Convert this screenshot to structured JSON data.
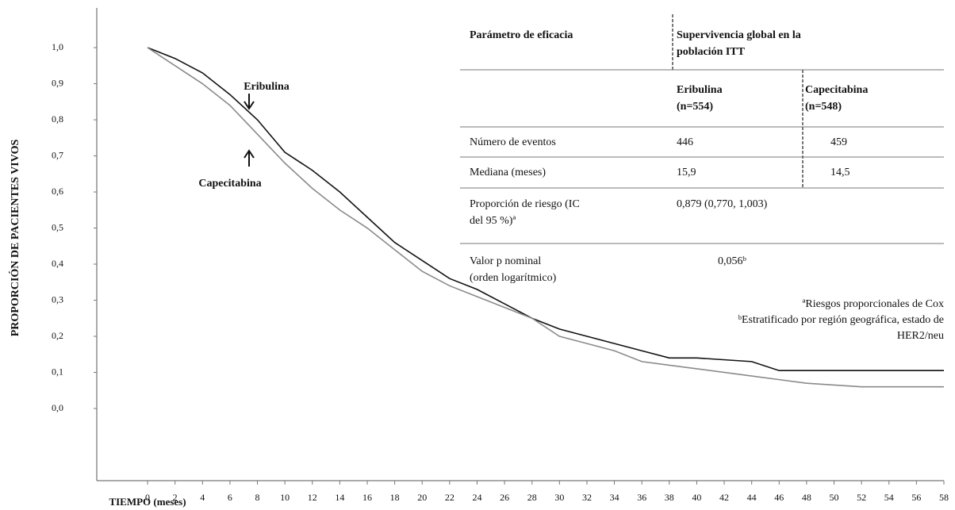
{
  "chart_data": {
    "type": "line",
    "y_label": "PROPORCIÓN DE PACIENTES VIVOS",
    "x_label": "TIEMPO (meses)",
    "xlim": [
      -3.7,
      58
    ],
    "xticks": [
      0,
      2,
      4,
      6,
      8,
      10,
      12,
      14,
      16,
      18,
      20,
      22,
      24,
      26,
      28,
      30,
      32,
      34,
      36,
      38,
      40,
      42,
      44,
      46,
      48,
      50,
      52,
      54,
      56,
      58
    ],
    "ylim": [
      -0.2,
      1.11
    ],
    "yticks": [
      {
        "value": 0,
        "label": "0,0"
      },
      {
        "value": 0.1,
        "label": "0,1"
      },
      {
        "value": 0.2,
        "label": "0,2"
      },
      {
        "value": 0.3,
        "label": "0,3"
      },
      {
        "value": 0.4,
        "label": "0,4"
      },
      {
        "value": 0.5,
        "label": "0,5"
      },
      {
        "value": 0.6,
        "label": "0,6"
      },
      {
        "value": 0.7,
        "label": "0,7"
      },
      {
        "value": 0.8,
        "label": "0,8"
      },
      {
        "value": 0.9,
        "label": "0,9"
      },
      {
        "value": 1,
        "label": "1,0"
      }
    ],
    "x": [
      0,
      2,
      4,
      6,
      8,
      10,
      12,
      14,
      16,
      18,
      20,
      22,
      24,
      26,
      28,
      30,
      32,
      34,
      36,
      38,
      40,
      44,
      46,
      48,
      52,
      58
    ],
    "series": [
      {
        "name": "Eribulina",
        "color": "#111111",
        "values": [
          1.0,
          0.97,
          0.93,
          0.87,
          0.8,
          0.71,
          0.66,
          0.6,
          0.53,
          0.46,
          0.41,
          0.36,
          0.33,
          0.29,
          0.25,
          0.22,
          0.2,
          0.18,
          0.16,
          0.14,
          0.14,
          0.13,
          0.105,
          0.105,
          0.105,
          0.105
        ]
      },
      {
        "name": "Capecitabina",
        "color": "#8a8a8a",
        "values": [
          1.0,
          0.95,
          0.9,
          0.84,
          0.76,
          0.68,
          0.61,
          0.55,
          0.5,
          0.44,
          0.38,
          0.34,
          0.31,
          0.28,
          0.25,
          0.2,
          0.18,
          0.16,
          0.13,
          0.12,
          0.11,
          0.09,
          0.08,
          0.07,
          0.06,
          0.06
        ]
      }
    ]
  },
  "table": {
    "header": [
      [
        "Parámetro de eficacia"
      ],
      [
        "Supervivencia global en la",
        "población ITT"
      ]
    ],
    "subheader": [
      [
        "Eribulina",
        "(n=554)"
      ],
      [
        "Capecitabina",
        "(n=548)"
      ]
    ],
    "rows": [
      [
        [
          "Número de eventos"
        ],
        [
          "446"
        ],
        [
          "459"
        ]
      ],
      [
        [
          "Mediana (meses)"
        ],
        [
          "15,9"
        ],
        [
          "14,5"
        ]
      ],
      [
        [
          "Proporción de riesgo (IC",
          "del 95 %)ª"
        ],
        [
          "0,879 (0,770, 1,003)"
        ]
      ],
      [
        [
          "Valor p nominal",
          "(orden logarítmico)"
        ],
        [
          "0,056ᵇ"
        ]
      ]
    ],
    "footnotes": [
      "ªRiesgos proporcionales de Cox",
      "ᵇEstratificado por región geográfica, estado de",
      "HER2/neu"
    ]
  }
}
